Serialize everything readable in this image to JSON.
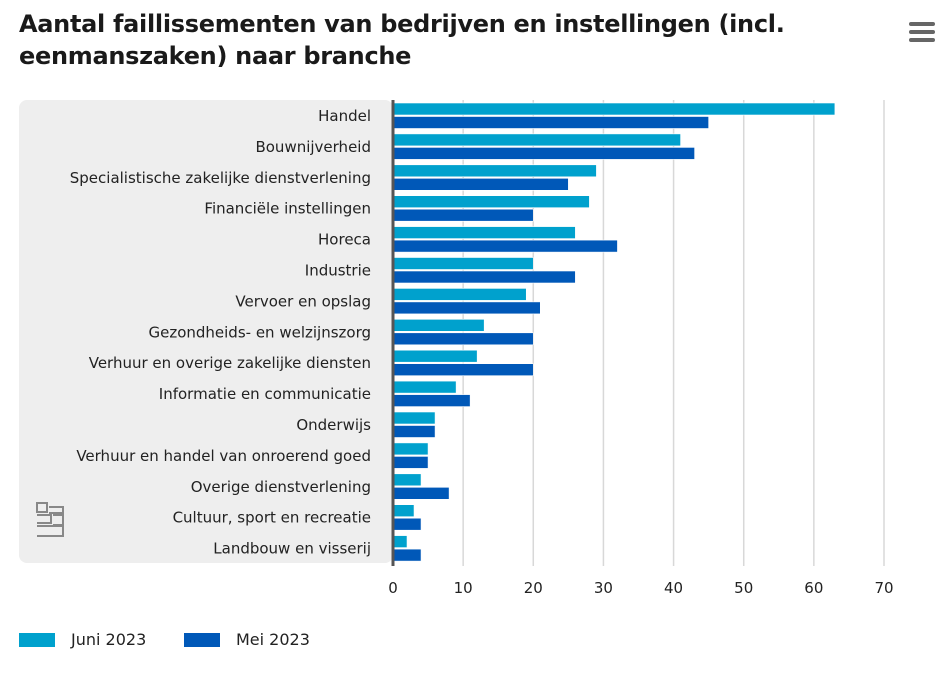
{
  "title": "Aantal faillissementen van bedrijven en instellingen (incl. eenmanszaken) naar branche",
  "menu_icon": "hamburger-menu-icon",
  "logo": "cbs",
  "chart_data": {
    "type": "bar",
    "orientation": "horizontal",
    "title": "Aantal faillissementen van bedrijven en instellingen (incl. eenmanszaken) naar branche",
    "categories": [
      "Handel",
      "Bouwnijverheid",
      "Specialistische zakelijke dienstverlening",
      "Financiële instellingen",
      "Horeca",
      "Industrie",
      "Vervoer en opslag",
      "Gezondheids- en welzijnszorg",
      "Verhuur en overige zakelijke diensten",
      "Informatie en communicatie",
      "Onderwijs",
      "Verhuur en handel van onroerend goed",
      "Overige dienstverlening",
      "Cultuur, sport en recreatie",
      "Landbouw en visserij"
    ],
    "series": [
      {
        "name": "Juni 2023",
        "color": "#00a1cd",
        "values": [
          63,
          41,
          29,
          28,
          26,
          20,
          19,
          13,
          12,
          9,
          6,
          5,
          4,
          3,
          2
        ]
      },
      {
        "name": "Mei 2023",
        "color": "#0058b8",
        "values": [
          45,
          43,
          25,
          20,
          32,
          26,
          21,
          20,
          20,
          11,
          6,
          5,
          8,
          4,
          4
        ]
      }
    ],
    "xlim": [
      0,
      70
    ],
    "xticks": [
      "0",
      "10",
      "20",
      "30",
      "40",
      "50",
      "60",
      "70"
    ],
    "grid": true,
    "legend_position": "bottom-left"
  }
}
